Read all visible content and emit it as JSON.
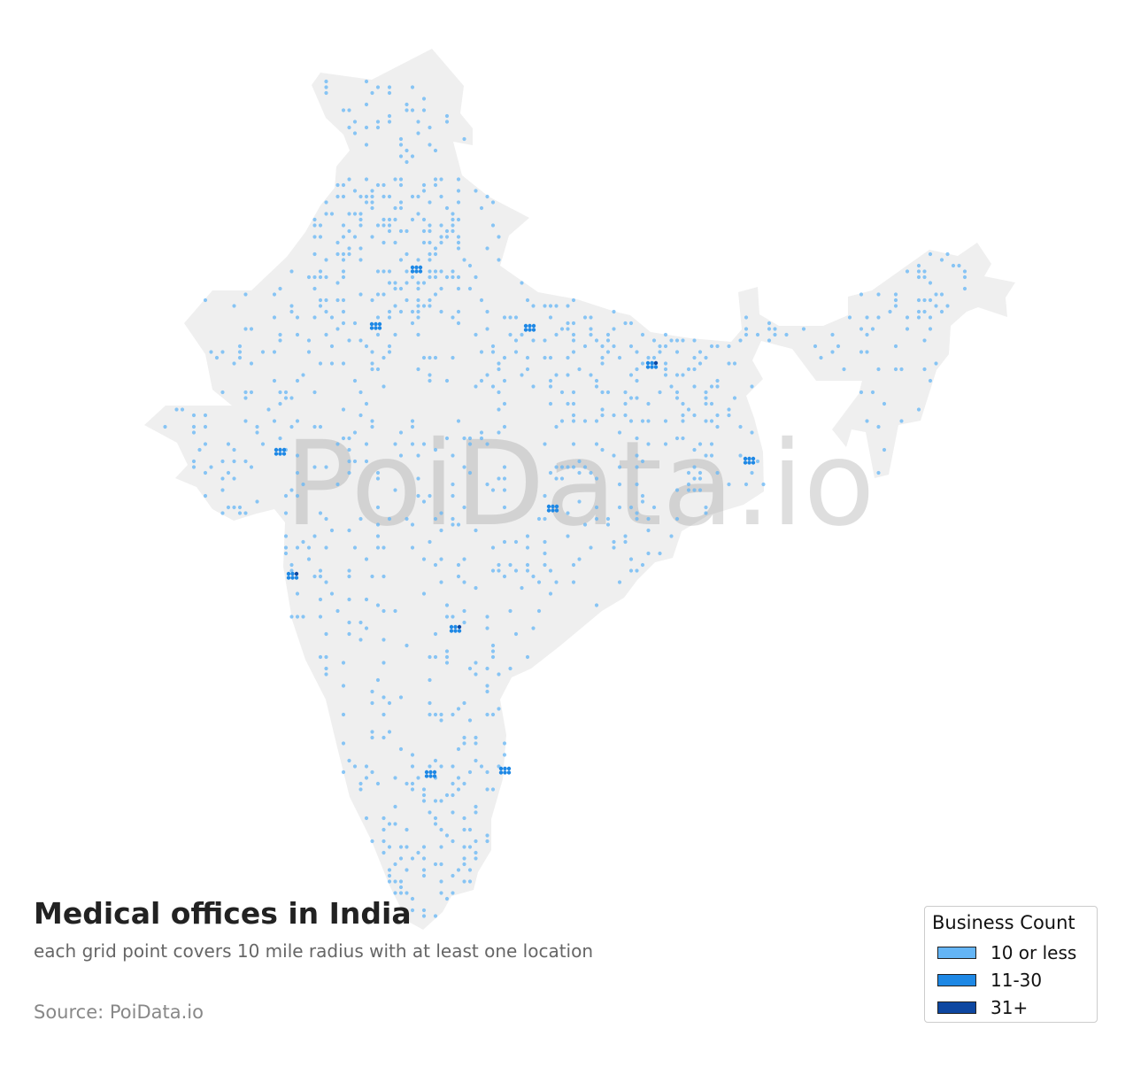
{
  "map": {
    "title": "Medical offices in India",
    "subtitle": "each grid point covers 10 mile radius with at least one location",
    "source": "Source: PoiData.io",
    "watermark": "PoiData.io",
    "land_color": "#efefef",
    "legend": {
      "title": "Business Count",
      "items": [
        {
          "label": "10 or less",
          "color": "#64b5f6"
        },
        {
          "label": "11-30",
          "color": "#1e88e5"
        },
        {
          "label": "31+",
          "color": "#0d47a1"
        }
      ]
    }
  }
}
